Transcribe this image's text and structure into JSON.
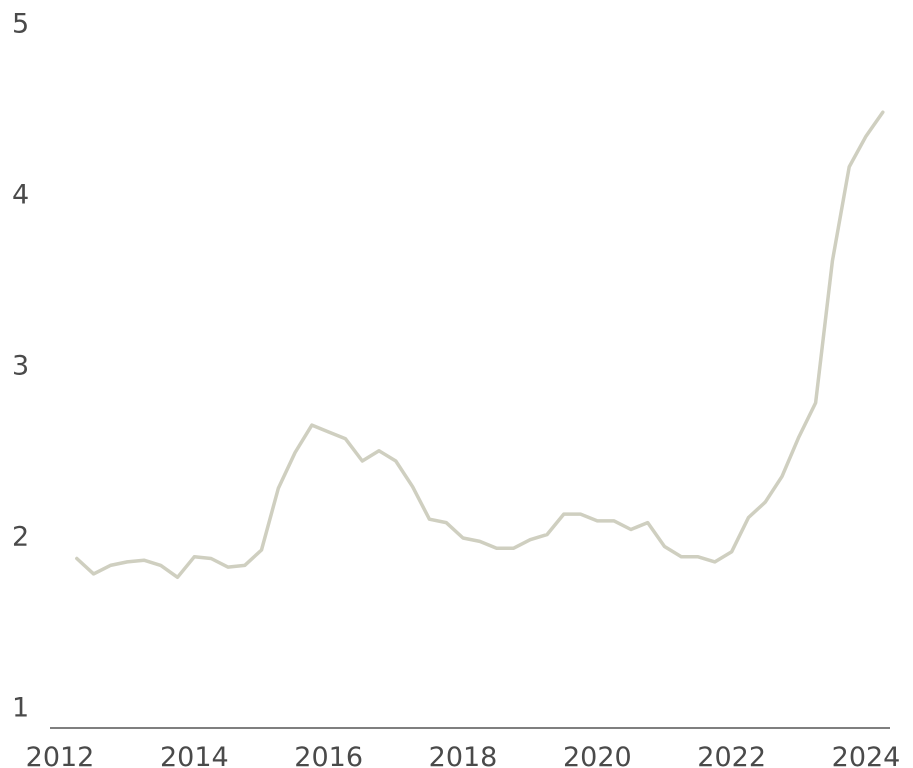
{
  "chart_data": {
    "type": "line",
    "title": "",
    "xlabel": "",
    "ylabel": "",
    "xlim": [
      2012,
      2024
    ],
    "ylim": [
      1,
      5
    ],
    "x_ticks": [
      "2012",
      "2014",
      "2016",
      "2018",
      "2020",
      "2022",
      "2024"
    ],
    "y_ticks": [
      "1",
      "2",
      "3",
      "4",
      "5"
    ],
    "grid": false,
    "legend": "none",
    "series": [
      {
        "color": "#cfcfc0",
        "points": [
          [
            2012.25,
            1.88
          ],
          [
            2012.5,
            1.79
          ],
          [
            2012.75,
            1.84
          ],
          [
            2013.0,
            1.86
          ],
          [
            2013.25,
            1.87
          ],
          [
            2013.5,
            1.84
          ],
          [
            2013.75,
            1.77
          ],
          [
            2014.0,
            1.89
          ],
          [
            2014.25,
            1.88
          ],
          [
            2014.5,
            1.83
          ],
          [
            2014.75,
            1.84
          ],
          [
            2015.0,
            1.93
          ],
          [
            2015.25,
            2.29
          ],
          [
            2015.5,
            2.5
          ],
          [
            2015.75,
            2.66
          ],
          [
            2016.0,
            2.62
          ],
          [
            2016.25,
            2.58
          ],
          [
            2016.5,
            2.45
          ],
          [
            2016.75,
            2.51
          ],
          [
            2017.0,
            2.45
          ],
          [
            2017.25,
            2.3
          ],
          [
            2017.5,
            2.11
          ],
          [
            2017.75,
            2.09
          ],
          [
            2018.0,
            2.0
          ],
          [
            2018.25,
            1.98
          ],
          [
            2018.5,
            1.94
          ],
          [
            2018.75,
            1.94
          ],
          [
            2019.0,
            1.99
          ],
          [
            2019.25,
            2.02
          ],
          [
            2019.5,
            2.14
          ],
          [
            2019.75,
            2.14
          ],
          [
            2020.0,
            2.1
          ],
          [
            2020.25,
            2.1
          ],
          [
            2020.5,
            2.05
          ],
          [
            2020.75,
            2.09
          ],
          [
            2021.0,
            1.95
          ],
          [
            2021.25,
            1.89
          ],
          [
            2021.5,
            1.89
          ],
          [
            2021.75,
            1.86
          ],
          [
            2022.0,
            1.92
          ],
          [
            2022.25,
            2.12
          ],
          [
            2022.5,
            2.21
          ],
          [
            2022.75,
            2.36
          ],
          [
            2023.0,
            2.59
          ],
          [
            2023.25,
            2.79
          ],
          [
            2023.5,
            3.62
          ],
          [
            2023.75,
            4.17
          ],
          [
            2024.0,
            4.35
          ],
          [
            2024.25,
            4.49
          ]
        ]
      }
    ]
  }
}
